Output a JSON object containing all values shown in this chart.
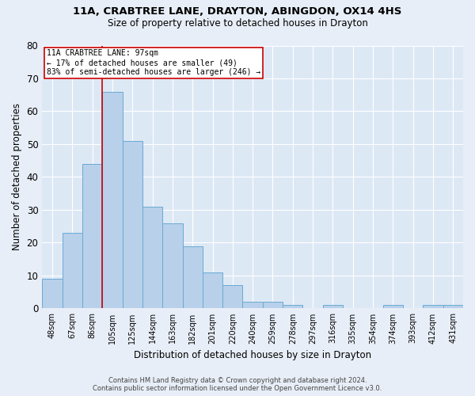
{
  "title_line1": "11A, CRABTREE LANE, DRAYTON, ABINGDON, OX14 4HS",
  "title_line2": "Size of property relative to detached houses in Drayton",
  "xlabel": "Distribution of detached houses by size in Drayton",
  "ylabel": "Number of detached properties",
  "categories": [
    "48sqm",
    "67sqm",
    "86sqm",
    "105sqm",
    "125sqm",
    "144sqm",
    "163sqm",
    "182sqm",
    "201sqm",
    "220sqm",
    "240sqm",
    "259sqm",
    "278sqm",
    "297sqm",
    "316sqm",
    "335sqm",
    "354sqm",
    "374sqm",
    "393sqm",
    "412sqm",
    "431sqm"
  ],
  "values": [
    9,
    23,
    44,
    66,
    51,
    31,
    26,
    19,
    11,
    7,
    2,
    2,
    1,
    0,
    1,
    0,
    0,
    1,
    0,
    1,
    1
  ],
  "bar_color": "#b8d0ea",
  "bar_edge_color": "#6aaad4",
  "marker_label_line1": "11A CRABTREE LANE: 97sqm",
  "marker_label_line2": "← 17% of detached houses are smaller (49)",
  "marker_label_line3": "83% of semi-detached houses are larger (246) →",
  "marker_color": "#cc0000",
  "ylim": [
    0,
    80
  ],
  "yticks": [
    0,
    10,
    20,
    30,
    40,
    50,
    60,
    70,
    80
  ],
  "background_color": "#dde8f5",
  "plot_bg_color": "#dde8f5",
  "grid_color": "#ffffff",
  "footer_line1": "Contains HM Land Registry data © Crown copyright and database right 2024.",
  "footer_line2": "Contains public sector information licensed under the Open Government Licence v3.0."
}
